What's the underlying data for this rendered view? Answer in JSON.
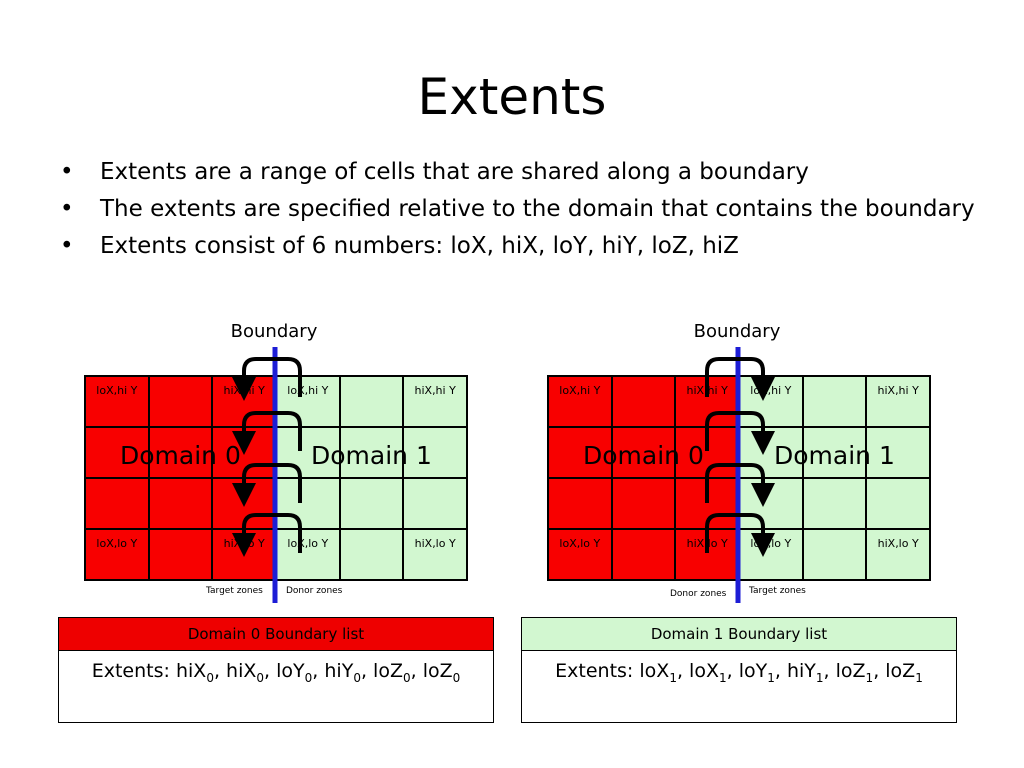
{
  "title": "Extents",
  "bullets": [
    "Extents are a range of cells that are shared along a boundary",
    "The extents are specified relative to the domain that contains the boundary",
    "Extents consist of 6 numbers: loX, hiX, loY, hiY, loZ, hiZ"
  ],
  "colors": {
    "domain0": "#f80000",
    "domain1": "#d2f7d0",
    "boundary_line": "#1d1dd6",
    "arrow": "#000000"
  },
  "diagrams": [
    {
      "boundary_label": "Boundary",
      "domain0_label": "Domain 0",
      "domain1_label": "Domain 1",
      "zone_labels": [
        "Target zones",
        "Donor zones"
      ],
      "top_row": [
        "loX,hi Y",
        "",
        "hiX,hi Y",
        "loX,hi Y",
        "",
        "hiX,hi Y"
      ],
      "bottom_row": [
        "loX,lo Y",
        "",
        "hiX,lo Y",
        "loX,lo Y",
        "",
        "hiX,lo Y"
      ],
      "arrow_direction": "into-domain-0"
    },
    {
      "boundary_label": "Boundary",
      "domain0_label": "Domain 0",
      "domain1_label": "Domain 1",
      "zone_labels": [
        "Donor zones",
        "Target zones"
      ],
      "top_row": [
        "loX,hi Y",
        "",
        "hiX,hi Y",
        "loX,hi Y",
        "",
        "hiX,hi Y"
      ],
      "bottom_row": [
        "loX,lo Y",
        "",
        "hiX,lo Y",
        "loX,lo Y",
        "",
        "hiX,lo Y"
      ],
      "arrow_direction": "into-domain-1"
    }
  ],
  "lists": [
    {
      "header": "Domain 0 Boundary list",
      "prefix": "Extents: ",
      "terms": [
        [
          "hiX",
          "0"
        ],
        [
          "hiX",
          "0"
        ],
        [
          "loY",
          "0"
        ],
        [
          "hiY",
          "0"
        ],
        [
          "loZ",
          "0"
        ],
        [
          "loZ",
          "0"
        ]
      ]
    },
    {
      "header": "Domain 1 Boundary list",
      "prefix": "Extents: ",
      "terms": [
        [
          "loX",
          "1"
        ],
        [
          "loX",
          "1"
        ],
        [
          "loY",
          "1"
        ],
        [
          "hiY",
          "1"
        ],
        [
          "loZ",
          "1"
        ],
        [
          "loZ",
          "1"
        ]
      ]
    }
  ]
}
